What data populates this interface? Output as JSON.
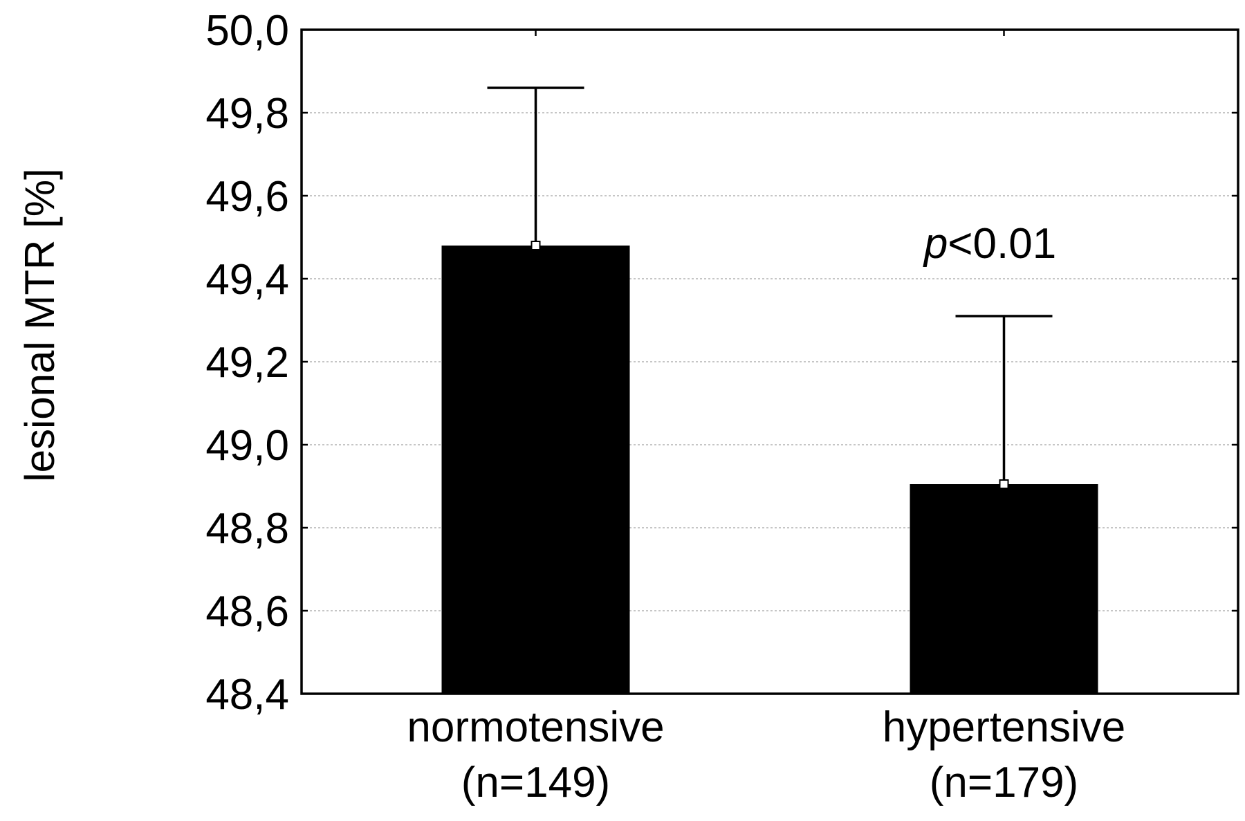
{
  "chart_data": {
    "type": "bar",
    "title": "",
    "xlabel": "",
    "ylabel": "lesional MTR [%]",
    "categories": [
      {
        "label": "normotensive",
        "sublabel": "(n=149)"
      },
      {
        "label": "hypertensive",
        "sublabel": "(n=179)"
      }
    ],
    "values": [
      49.48,
      48.905
    ],
    "error_upper": [
      49.86,
      49.31
    ],
    "ylim": [
      48.4,
      50.0
    ],
    "yticks": [
      "50,0",
      "49,8",
      "49,6",
      "49,4",
      "49,2",
      "49,0",
      "48,8",
      "48,6",
      "48,4"
    ],
    "ytick_values": [
      50.0,
      49.8,
      49.6,
      49.4,
      49.2,
      49.0,
      48.8,
      48.6,
      48.4
    ],
    "grid": true,
    "annotation": {
      "italic": "p",
      "text": "<0.01",
      "category_index": 1
    },
    "colors": {
      "bar": "#000000",
      "grid": "#b4b4b4",
      "marker_fill": "#ffffff"
    }
  }
}
